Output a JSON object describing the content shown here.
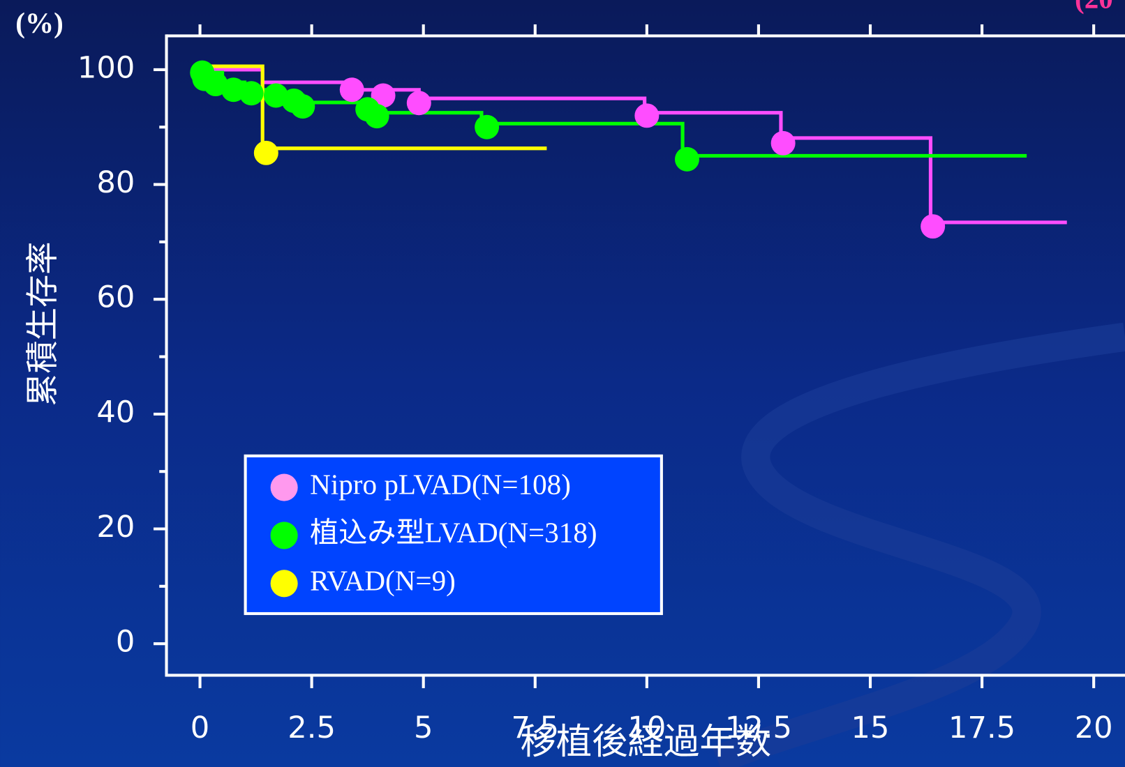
{
  "chart_data": {
    "type": "step",
    "y_unit_label": "(%)",
    "corner_note": "(20",
    "xlabel": "移植後経過年数",
    "ylabel": "累積生存率",
    "xlim": [
      -0.75,
      20.7
    ],
    "ylim": [
      -5.5,
      105.9
    ],
    "xticks": [
      0,
      2.5,
      5,
      7.5,
      10,
      12.5,
      15,
      17.5,
      20
    ],
    "yticks": [
      0,
      20,
      40,
      60,
      80,
      100
    ],
    "yminor_ticks": [
      10,
      30,
      50,
      70,
      90
    ],
    "legend": "lower left",
    "series": [
      {
        "name": "Nipro pLVAD(N=108)",
        "color": "#ff4dff",
        "marker_color": "#ff99ee",
        "x": [
          0,
          1.4,
          3.4,
          4.9,
          9.95,
          13.0,
          16.35,
          19.4
        ],
        "values": [
          100,
          97.8,
          96.5,
          95.0,
          92.5,
          88.1,
          73.4,
          73.4
        ],
        "censor_x": [
          3.4,
          4.1,
          4.9,
          10.0,
          13.05,
          16.4
        ],
        "censor_values": [
          96.5,
          95.5,
          94.2,
          92.0,
          87.2,
          72.7
        ]
      },
      {
        "name": "植込み型LVAD(N=318)",
        "color": "#00ff00",
        "marker_color": "#00ff00",
        "x": [
          0,
          0.5,
          1.0,
          1.5,
          2.3,
          3.8,
          6.3,
          10.8,
          18.5
        ],
        "values": [
          99.5,
          97.8,
          96.5,
          95.5,
          94.3,
          92.5,
          90.6,
          85.0,
          85.0
        ],
        "censor_x": [
          0.05,
          0.1,
          0.35,
          0.75,
          1.15,
          1.7,
          2.1,
          2.3,
          3.75,
          3.96,
          6.42,
          10.9
        ],
        "censor_values": [
          99.5,
          98.4,
          97.5,
          96.5,
          95.9,
          95.5,
          94.6,
          93.6,
          93.1,
          91.9,
          90.0,
          84.4
        ]
      },
      {
        "name": "RVAD(N=9)",
        "color": "#ffff00",
        "marker_color": "#ffff00",
        "x": [
          0,
          1.4,
          7.76
        ],
        "values": [
          100.6,
          86.3,
          86.3
        ],
        "censor_x": [
          1.48
        ],
        "censor_values": [
          85.5
        ]
      }
    ]
  }
}
